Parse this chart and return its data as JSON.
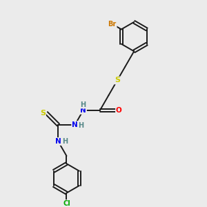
{
  "background_color": "#ebebeb",
  "bond_color": "#1a1a1a",
  "atom_colors": {
    "Br": "#cc7700",
    "S": "#cccc00",
    "O": "#ff0000",
    "N": "#0000ee",
    "Cl": "#00aa00",
    "H": "#558888",
    "C": "#1a1a1a"
  },
  "figsize": [
    3.0,
    3.0
  ],
  "dpi": 100,
  "xlim": [
    0,
    10
  ],
  "ylim": [
    0,
    10
  ]
}
